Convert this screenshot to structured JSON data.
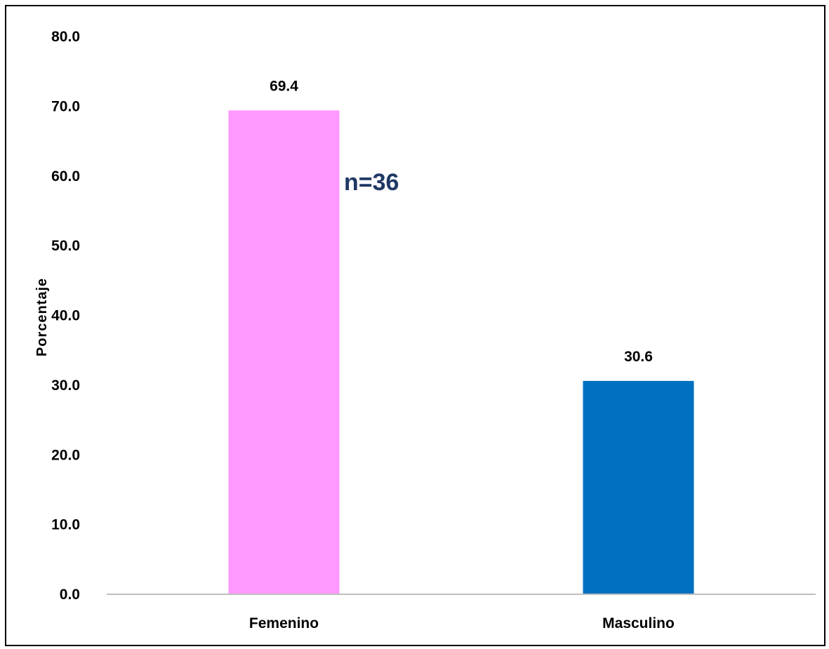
{
  "chart_data": {
    "type": "bar",
    "categories": [
      "Femenino",
      "Masculino"
    ],
    "values": [
      69.4,
      30.6
    ],
    "value_labels": [
      "69.4",
      "30.6"
    ],
    "colors": [
      "#ff99ff",
      "#0070c0"
    ],
    "title": "",
    "xlabel": "",
    "ylabel": "Porcentaje",
    "ylim": [
      0,
      80
    ],
    "yticks": [
      0,
      10,
      20,
      30,
      40,
      50,
      60,
      70,
      80
    ],
    "ytick_labels": [
      "0.0",
      "10.0",
      "20.0",
      "30.0",
      "40.0",
      "50.0",
      "60.0",
      "70.0",
      "80.0"
    ],
    "grid": false,
    "legend": "none",
    "annotation": {
      "text": "n=36",
      "color": "#1f3864"
    },
    "axis_color": "#bfbfbf"
  }
}
